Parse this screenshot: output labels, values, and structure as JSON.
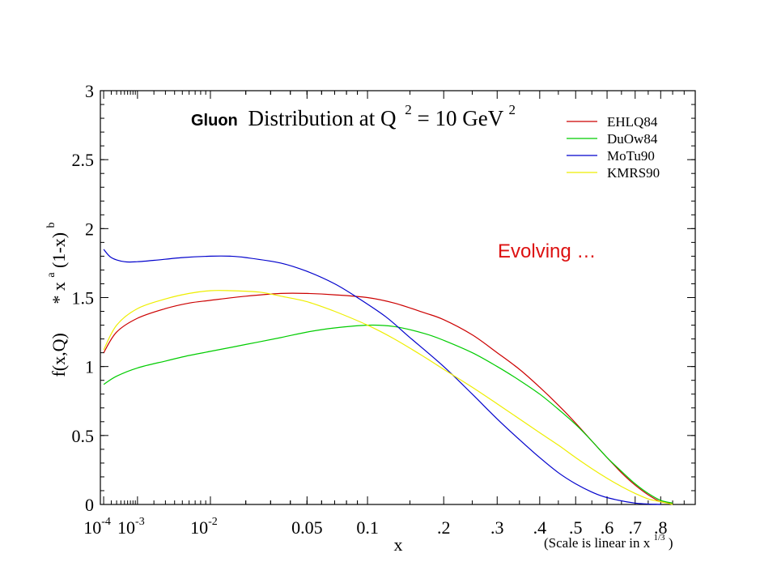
{
  "annotation": "Evolving …",
  "chart_data": {
    "type": "line",
    "title": {
      "word": "Gluon",
      "rest": "Distribution at Q",
      "sup1": "2",
      "eq": " = 10 GeV",
      "sup2": "2"
    },
    "ylabel": {
      "base": "f(x,Q)",
      "times": "* x",
      "sup_a": "a",
      "mid": "(1-x)",
      "sup_b": "b"
    },
    "xlabel": "x",
    "x_note": {
      "text": "(Scale is linear in x",
      "sup": "1/3",
      "close": ")"
    },
    "x_scale": "linear in x^(1/3)",
    "xlim": [
      7e-05,
      0.95
    ],
    "ylim": [
      0,
      3
    ],
    "y_ticks": [
      {
        "value": 0,
        "label": "0"
      },
      {
        "value": 0.5,
        "label": "0.5"
      },
      {
        "value": 1,
        "label": "1"
      },
      {
        "value": 1.5,
        "label": "1.5"
      },
      {
        "value": 2,
        "label": "2"
      },
      {
        "value": 2.5,
        "label": "2.5"
      },
      {
        "value": 3,
        "label": "3"
      }
    ],
    "x_ticks": [
      {
        "value": 0.0001,
        "base": "10",
        "sup": "-4"
      },
      {
        "value": 0.001,
        "base": "10",
        "sup": "-3"
      },
      {
        "value": 0.01,
        "base": "10",
        "sup": "-2"
      },
      {
        "value": 0.05,
        "label": "0.05"
      },
      {
        "value": 0.1,
        "label": "0.1"
      },
      {
        "value": 0.2,
        "label": ".2"
      },
      {
        "value": 0.3,
        "label": ".3"
      },
      {
        "value": 0.4,
        "label": ".4"
      },
      {
        "value": 0.5,
        "label": ".5"
      },
      {
        "value": 0.6,
        "label": ".6"
      },
      {
        "value": 0.7,
        "label": ".7"
      },
      {
        "value": 0.8,
        "label": ".8"
      }
    ],
    "legend_position": "top-right",
    "series": [
      {
        "name": "EHLQ84",
        "color": "#cc0000",
        "points": [
          [
            0.0001,
            1.1
          ],
          [
            0.0003,
            1.25
          ],
          [
            0.001,
            1.35
          ],
          [
            0.003,
            1.42
          ],
          [
            0.006,
            1.46
          ],
          [
            0.01,
            1.48
          ],
          [
            0.02,
            1.51
          ],
          [
            0.035,
            1.53
          ],
          [
            0.05,
            1.53
          ],
          [
            0.07,
            1.52
          ],
          [
            0.1,
            1.5
          ],
          [
            0.13,
            1.46
          ],
          [
            0.17,
            1.39
          ],
          [
            0.2,
            1.34
          ],
          [
            0.25,
            1.23
          ],
          [
            0.3,
            1.1
          ],
          [
            0.35,
            0.98
          ],
          [
            0.4,
            0.85
          ],
          [
            0.45,
            0.72
          ],
          [
            0.5,
            0.59
          ],
          [
            0.55,
            0.46
          ],
          [
            0.6,
            0.34
          ],
          [
            0.65,
            0.23
          ],
          [
            0.7,
            0.14
          ],
          [
            0.75,
            0.07
          ],
          [
            0.8,
            0.02
          ],
          [
            0.85,
            0.01
          ]
        ]
      },
      {
        "name": "DuOw84",
        "color": "#00cc00",
        "points": [
          [
            0.0001,
            0.87
          ],
          [
            0.0003,
            0.93
          ],
          [
            0.001,
            0.99
          ],
          [
            0.003,
            1.04
          ],
          [
            0.006,
            1.08
          ],
          [
            0.01,
            1.11
          ],
          [
            0.02,
            1.16
          ],
          [
            0.035,
            1.21
          ],
          [
            0.05,
            1.25
          ],
          [
            0.07,
            1.28
          ],
          [
            0.1,
            1.3
          ],
          [
            0.13,
            1.29
          ],
          [
            0.17,
            1.24
          ],
          [
            0.2,
            1.19
          ],
          [
            0.25,
            1.1
          ],
          [
            0.3,
            1.0
          ],
          [
            0.35,
            0.9
          ],
          [
            0.4,
            0.8
          ],
          [
            0.45,
            0.69
          ],
          [
            0.5,
            0.58
          ],
          [
            0.55,
            0.46
          ],
          [
            0.6,
            0.34
          ],
          [
            0.65,
            0.24
          ],
          [
            0.7,
            0.15
          ],
          [
            0.75,
            0.08
          ],
          [
            0.8,
            0.03
          ],
          [
            0.85,
            0.01
          ]
        ]
      },
      {
        "name": "MoTu90",
        "color": "#0000cc",
        "points": [
          [
            0.0001,
            1.85
          ],
          [
            0.0002,
            1.79
          ],
          [
            0.0005,
            1.76
          ],
          [
            0.001,
            1.76
          ],
          [
            0.002,
            1.77
          ],
          [
            0.005,
            1.79
          ],
          [
            0.01,
            1.8
          ],
          [
            0.015,
            1.8
          ],
          [
            0.02,
            1.79
          ],
          [
            0.035,
            1.75
          ],
          [
            0.05,
            1.69
          ],
          [
            0.07,
            1.6
          ],
          [
            0.09,
            1.5
          ],
          [
            0.12,
            1.36
          ],
          [
            0.15,
            1.21
          ],
          [
            0.2,
            1.0
          ],
          [
            0.25,
            0.8
          ],
          [
            0.3,
            0.62
          ],
          [
            0.35,
            0.47
          ],
          [
            0.4,
            0.34
          ],
          [
            0.45,
            0.23
          ],
          [
            0.5,
            0.15
          ],
          [
            0.55,
            0.09
          ],
          [
            0.6,
            0.05
          ],
          [
            0.7,
            0.01
          ],
          [
            0.8,
            0.0
          ]
        ]
      },
      {
        "name": "KMRS90",
        "color": "#eeee00",
        "points": [
          [
            0.0001,
            1.12
          ],
          [
            0.0003,
            1.3
          ],
          [
            0.001,
            1.42
          ],
          [
            0.003,
            1.49
          ],
          [
            0.006,
            1.53
          ],
          [
            0.01,
            1.55
          ],
          [
            0.015,
            1.55
          ],
          [
            0.025,
            1.54
          ],
          [
            0.035,
            1.51
          ],
          [
            0.05,
            1.47
          ],
          [
            0.07,
            1.4
          ],
          [
            0.1,
            1.3
          ],
          [
            0.13,
            1.2
          ],
          [
            0.17,
            1.07
          ],
          [
            0.2,
            0.98
          ],
          [
            0.25,
            0.85
          ],
          [
            0.3,
            0.73
          ],
          [
            0.35,
            0.62
          ],
          [
            0.4,
            0.52
          ],
          [
            0.45,
            0.43
          ],
          [
            0.5,
            0.34
          ],
          [
            0.55,
            0.26
          ],
          [
            0.6,
            0.19
          ],
          [
            0.65,
            0.13
          ],
          [
            0.7,
            0.08
          ],
          [
            0.75,
            0.04
          ],
          [
            0.8,
            0.02
          ],
          [
            0.85,
            0.0
          ]
        ]
      }
    ]
  }
}
